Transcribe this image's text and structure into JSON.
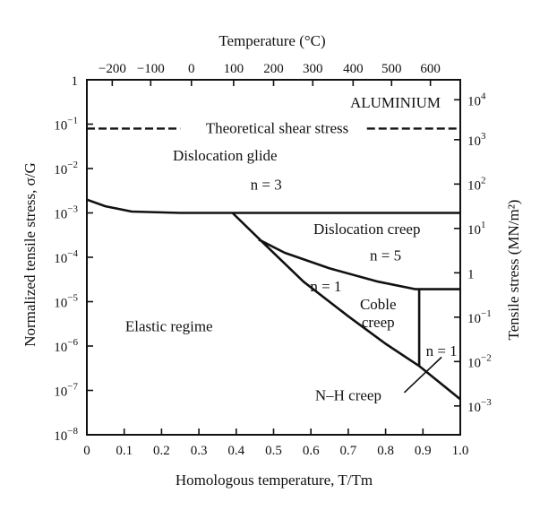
{
  "chart_data": {
    "type": "line",
    "title": "ALUMINIUM",
    "xlabel": "Homologous temperature, T/Tm",
    "ylabel": "Normalized tensile stress, σ/G",
    "top_axis_label": "Temperature (°C)",
    "right_axis_label": "Tensile stress (MN/m²)",
    "xlim": [
      0,
      1.0
    ],
    "ylim_log10": [
      -8,
      0
    ],
    "x_ticks": [
      "0",
      "0.1",
      "0.2",
      "0.3",
      "0.4",
      "0.5",
      "0.6",
      "0.7",
      "0.8",
      "0.9",
      "1.0"
    ],
    "y_ticks": [
      {
        "mant": "1",
        "exp": ""
      },
      {
        "mant": "10",
        "exp": "−1"
      },
      {
        "mant": "10",
        "exp": "−2"
      },
      {
        "mant": "10",
        "exp": "−3"
      },
      {
        "mant": "10",
        "exp": "−4"
      },
      {
        "mant": "10",
        "exp": "−5"
      },
      {
        "mant": "10",
        "exp": "−6"
      },
      {
        "mant": "10",
        "exp": "−7"
      },
      {
        "mant": "10",
        "exp": "−8"
      }
    ],
    "top_ticks": [
      {
        "label": "−200",
        "x": 0.068
      },
      {
        "label": "−100",
        "x": 0.171
      },
      {
        "label": "0",
        "x": 0.28
      },
      {
        "label": "100",
        "x": 0.393
      },
      {
        "label": "200",
        "x": 0.5
      },
      {
        "label": "300",
        "x": 0.605
      },
      {
        "label": "400",
        "x": 0.713
      },
      {
        "label": "500",
        "x": 0.816
      },
      {
        "label": "600",
        "x": 0.92
      }
    ],
    "right_ticks": [
      {
        "mant": "10",
        "exp": "4",
        "y": -0.45
      },
      {
        "mant": "10",
        "exp": "3",
        "y": -1.35
      },
      {
        "mant": "10",
        "exp": "2",
        "y": -2.35
      },
      {
        "mant": "10",
        "exp": "1",
        "y": -3.35
      },
      {
        "mant": "1",
        "exp": "",
        "y": -4.35
      },
      {
        "mant": "10",
        "exp": "−1",
        "y": -5.35
      },
      {
        "mant": "10",
        "exp": "−2",
        "y": -6.35
      },
      {
        "mant": "10",
        "exp": "−3",
        "y": -7.35
      }
    ],
    "theoretical_shear_stress": {
      "label": "Theoretical shear stress",
      "log10_sigma": -1.1
    },
    "boundaries": [
      {
        "name": "glide-limit",
        "points": [
          [
            0.0,
            -2.7
          ],
          [
            0.05,
            -2.85
          ],
          [
            0.12,
            -2.97
          ],
          [
            0.25,
            -3.0
          ],
          [
            1.0,
            -3.0
          ]
        ]
      },
      {
        "name": "elastic-limit",
        "points": [
          [
            0.39,
            -3.0
          ],
          [
            0.48,
            -3.74
          ],
          [
            0.58,
            -4.55
          ],
          [
            0.7,
            -5.33
          ],
          [
            0.8,
            -5.95
          ],
          [
            0.89,
            -6.45
          ],
          [
            1.0,
            -7.2
          ]
        ]
      },
      {
        "name": "coble-upper",
        "points": [
          [
            0.46,
            -3.6
          ],
          [
            0.53,
            -3.9
          ],
          [
            0.65,
            -4.25
          ],
          [
            0.78,
            -4.55
          ],
          [
            0.88,
            -4.72
          ],
          [
            1.0,
            -4.72
          ]
        ]
      },
      {
        "name": "coble-nh-split",
        "points": [
          [
            0.89,
            -4.72
          ],
          [
            0.89,
            -6.45
          ]
        ]
      }
    ],
    "regions": [
      {
        "label": "Dislocation glide",
        "x": 0.37,
        "y": -1.7
      },
      {
        "label": "n = 3",
        "x": 0.48,
        "y": -2.35
      },
      {
        "label": "Dislocation creep",
        "x": 0.75,
        "y": -3.35
      },
      {
        "label": "n = 5",
        "x": 0.8,
        "y": -3.95
      },
      {
        "label": "n = 1",
        "x": 0.64,
        "y": -4.65
      },
      {
        "label": "Coble",
        "x": 0.78,
        "y": -5.05
      },
      {
        "label": "creep",
        "x": 0.78,
        "y": -5.45
      },
      {
        "label": "n = 1",
        "x": 0.95,
        "y": -6.1
      },
      {
        "label": "Elastic regime",
        "x": 0.22,
        "y": -5.55
      },
      {
        "label": "N–H creep",
        "x": 0.7,
        "y": -7.1
      }
    ],
    "annotation_arrow": {
      "from": [
        0.85,
        -7.05
      ],
      "to": [
        0.95,
        -6.25
      ]
    },
    "grid": false
  }
}
